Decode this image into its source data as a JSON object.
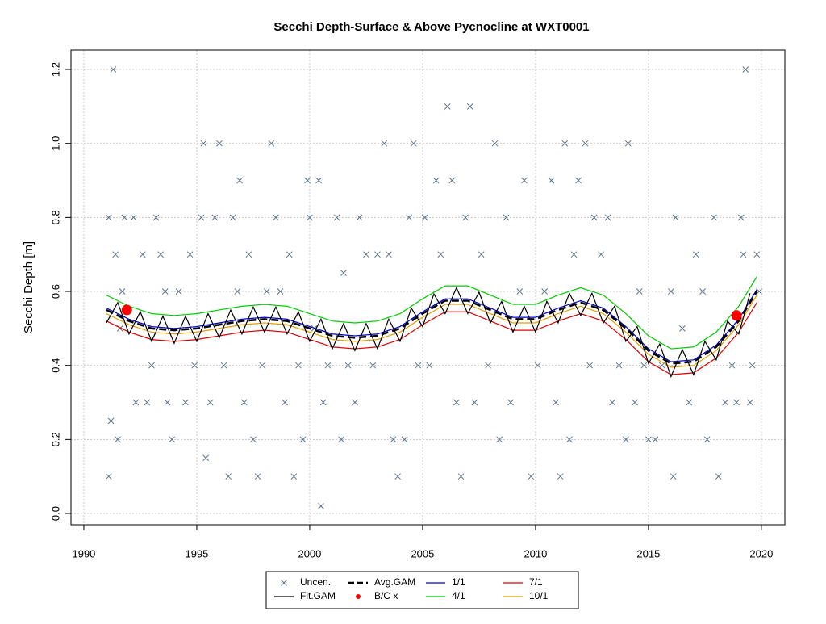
{
  "chart_data": {
    "type": "line",
    "title": "Secchi Depth-Surface & Above Pycnocline at WXT0001",
    "y_label": "Secchi Depth [m]",
    "xlim": [
      1989.43,
      2021.04
    ],
    "ylim": [
      -0.0305,
      1.2524
    ],
    "xticks": [
      1990,
      1995,
      2000,
      2005,
      2010,
      2015,
      2020
    ],
    "yticks": [
      {
        "value": 0,
        "label": "0.0"
      },
      0.2,
      0.4,
      0.6,
      0.8,
      {
        "value": 1,
        "label": "1.0"
      },
      1.2
    ],
    "grid": true,
    "series": [
      {
        "name": "Uncen.",
        "color": "#5f7489",
        "kind": "points",
        "marker": "x",
        "x": [
          1991.1,
          1991.1,
          1991.2,
          1991.3,
          1991.4,
          1991.5,
          1991.6,
          1991.7,
          1991.8,
          1992.2,
          1992.3,
          1992.6,
          1992.8,
          1993.0,
          1993.2,
          1993.4,
          1993.6,
          1993.7,
          1993.9,
          1994.2,
          1994.5,
          1994.7,
          1994.9,
          1995.2,
          1995.3,
          1995.4,
          1995.6,
          1995.8,
          1996.0,
          1996.2,
          1996.4,
          1996.6,
          1996.8,
          1996.9,
          1997.1,
          1997.3,
          1997.5,
          1997.7,
          1997.9,
          1998.1,
          1998.3,
          1998.5,
          1998.7,
          1998.9,
          1999.1,
          1999.3,
          1999.5,
          1999.7,
          1999.9,
          2000.0,
          2000.2,
          2000.4,
          2000.5,
          2000.6,
          2000.8,
          2001.2,
          2001.4,
          2001.5,
          2001.7,
          2002.0,
          2002.2,
          2002.5,
          2002.8,
          2003.0,
          2003.3,
          2003.5,
          2003.7,
          2003.9,
          2004.2,
          2004.4,
          2004.6,
          2004.8,
          2005.1,
          2005.3,
          2005.6,
          2005.8,
          2006.1,
          2006.3,
          2006.5,
          2006.7,
          2006.9,
          2007.1,
          2007.3,
          2007.6,
          2007.9,
          2008.2,
          2008.4,
          2008.7,
          2008.9,
          2009.3,
          2009.5,
          2009.8,
          2010.1,
          2010.4,
          2010.7,
          2010.9,
          2011.1,
          2011.3,
          2011.5,
          2011.7,
          2011.9,
          2012.2,
          2012.4,
          2012.6,
          2012.9,
          2013.2,
          2013.4,
          2013.7,
          2014.1,
          2014.0,
          2014.4,
          2014.6,
          2014.8,
          2015.0,
          2015.3,
          2015.6,
          2016.0,
          2016.1,
          2016.2,
          2016.5,
          2016.8,
          2017.1,
          2017.4,
          2017.6,
          2017.9,
          2018.1,
          2018.4,
          2018.7,
          2018.9,
          2019.1,
          2019.3,
          2019.2,
          2019.5,
          2019.6,
          2019.8,
          2019.9
        ],
        "values": [
          0.8,
          0.1,
          0.25,
          1.2,
          0.7,
          0.2,
          0.5,
          0.6,
          0.8,
          0.8,
          0.3,
          0.7,
          0.3,
          0.4,
          0.8,
          0.7,
          0.6,
          0.3,
          0.2,
          0.6,
          0.3,
          0.7,
          0.4,
          0.8,
          1.0,
          0.15,
          0.3,
          0.8,
          1.0,
          0.4,
          0.1,
          0.8,
          0.6,
          0.9,
          0.3,
          0.7,
          0.2,
          0.1,
          0.4,
          0.6,
          1.0,
          0.8,
          0.6,
          0.3,
          0.7,
          0.1,
          0.4,
          0.2,
          0.9,
          0.8,
          0.5,
          0.9,
          0.02,
          0.3,
          0.4,
          0.8,
          0.2,
          0.65,
          0.4,
          0.3,
          0.8,
          0.7,
          0.4,
          0.7,
          1.0,
          0.7,
          0.2,
          0.1,
          0.2,
          0.8,
          1.0,
          0.4,
          0.8,
          0.4,
          0.9,
          0.7,
          1.1,
          0.9,
          0.3,
          0.1,
          0.8,
          1.1,
          0.3,
          0.7,
          0.4,
          1.0,
          0.2,
          0.8,
          0.3,
          0.6,
          0.9,
          0.1,
          0.4,
          0.6,
          0.9,
          0.3,
          0.1,
          1.0,
          0.2,
          0.7,
          0.9,
          1.0,
          0.4,
          0.8,
          0.7,
          0.8,
          0.3,
          0.4,
          1.0,
          0.2,
          0.3,
          0.6,
          0.4,
          0.2,
          0.2,
          0.4,
          0.6,
          0.1,
          0.8,
          0.5,
          0.3,
          0.7,
          0.6,
          0.2,
          0.8,
          0.1,
          0.3,
          0.4,
          0.3,
          0.8,
          1.2,
          0.7,
          0.3,
          0.4,
          0.7,
          0.6
        ]
      },
      {
        "name": "Fit.GAM",
        "color": "#000000",
        "kind": "line",
        "x": [
          1991,
          1991.5,
          1992,
          1992.5,
          1993,
          1993.5,
          1994,
          1994.5,
          1995,
          1995.5,
          1996,
          1996.5,
          1997,
          1997.5,
          1998,
          1998.5,
          1999,
          1999.5,
          2000,
          2000.5,
          2001,
          2001.5,
          2002,
          2002.5,
          2003,
          2003.5,
          2004,
          2004.5,
          2005,
          2005.5,
          2006,
          2006.5,
          2007,
          2007.5,
          2008,
          2008.5,
          2009,
          2009.5,
          2010,
          2010.5,
          2011,
          2011.5,
          2012,
          2012.5,
          2013,
          2013.5,
          2014,
          2014.5,
          2015,
          2015.5,
          2016,
          2016.5,
          2017,
          2017.5,
          2018,
          2018.5,
          2019,
          2019.5
        ],
        "values": [
          0.515,
          0.57,
          0.485,
          0.545,
          0.465,
          0.533,
          0.46,
          0.533,
          0.465,
          0.54,
          0.475,
          0.55,
          0.485,
          0.558,
          0.49,
          0.558,
          0.485,
          0.545,
          0.465,
          0.525,
          0.445,
          0.513,
          0.44,
          0.513,
          0.445,
          0.525,
          0.465,
          0.555,
          0.505,
          0.593,
          0.54,
          0.61,
          0.54,
          0.598,
          0.515,
          0.573,
          0.49,
          0.56,
          0.49,
          0.573,
          0.515,
          0.595,
          0.535,
          0.595,
          0.515,
          0.56,
          0.465,
          0.505,
          0.405,
          0.458,
          0.37,
          0.443,
          0.375,
          0.465,
          0.415,
          0.52,
          0.485,
          0.595
        ]
      },
      {
        "name": "Avg.GAM",
        "color": "#000000",
        "kind": "line",
        "dash": true,
        "x": [
          1991,
          1992,
          1993,
          1994,
          1995,
          1996,
          1997,
          1998,
          1999,
          2000,
          2001,
          2002,
          2003,
          2004,
          2005,
          2006,
          2007,
          2008,
          2009,
          2010,
          2011,
          2012,
          2013,
          2014,
          2015,
          2016,
          2017,
          2018,
          2019,
          2019.8
        ],
        "values": [
          0.55,
          0.52,
          0.5,
          0.495,
          0.5,
          0.51,
          0.52,
          0.525,
          0.52,
          0.5,
          0.48,
          0.475,
          0.48,
          0.5,
          0.54,
          0.575,
          0.575,
          0.55,
          0.525,
          0.525,
          0.55,
          0.57,
          0.55,
          0.5,
          0.44,
          0.405,
          0.41,
          0.45,
          0.52,
          0.6
        ]
      },
      {
        "name": "B/C x",
        "color": "#ff0000",
        "kind": "points",
        "marker": "dot",
        "x": [
          1991.9,
          2018.9
        ],
        "values": [
          0.55,
          0.535
        ]
      },
      {
        "name": "1/1",
        "color": "#0000cd",
        "kind": "line",
        "x": [
          1991,
          1992,
          1993,
          1994,
          1995,
          1996,
          1997,
          1998,
          1999,
          2000,
          2001,
          2002,
          2003,
          2004,
          2005,
          2006,
          2007,
          2008,
          2009,
          2010,
          2011,
          2012,
          2013,
          2014,
          2015,
          2016,
          2017,
          2018,
          2019,
          2019.8
        ],
        "values": [
          0.555,
          0.525,
          0.505,
          0.5,
          0.505,
          0.515,
          0.525,
          0.53,
          0.525,
          0.505,
          0.485,
          0.48,
          0.485,
          0.505,
          0.545,
          0.58,
          0.58,
          0.555,
          0.53,
          0.53,
          0.555,
          0.575,
          0.555,
          0.505,
          0.445,
          0.41,
          0.415,
          0.455,
          0.525,
          0.605
        ]
      },
      {
        "name": "4/1",
        "color": "#00cc00",
        "kind": "line",
        "x": [
          1991,
          1992,
          1993,
          1994,
          1995,
          1996,
          1997,
          1998,
          1999,
          2000,
          2001,
          2002,
          2003,
          2004,
          2005,
          2006,
          2007,
          2008,
          2009,
          2010,
          2011,
          2012,
          2013,
          2014,
          2015,
          2016,
          2017,
          2018,
          2019,
          2019.8
        ],
        "values": [
          0.59,
          0.56,
          0.54,
          0.535,
          0.54,
          0.55,
          0.56,
          0.565,
          0.56,
          0.54,
          0.52,
          0.515,
          0.52,
          0.54,
          0.58,
          0.615,
          0.615,
          0.59,
          0.565,
          0.565,
          0.59,
          0.61,
          0.59,
          0.54,
          0.48,
          0.445,
          0.45,
          0.49,
          0.56,
          0.64
        ]
      },
      {
        "name": "7/1",
        "color": "#dd0000",
        "kind": "line",
        "x": [
          1991,
          1992,
          1993,
          1994,
          1995,
          1996,
          1997,
          1998,
          1999,
          2000,
          2001,
          2002,
          2003,
          2004,
          2005,
          2006,
          2007,
          2008,
          2009,
          2010,
          2011,
          2012,
          2013,
          2014,
          2015,
          2016,
          2017,
          2018,
          2019,
          2019.8
        ],
        "values": [
          0.52,
          0.49,
          0.47,
          0.465,
          0.47,
          0.48,
          0.49,
          0.495,
          0.49,
          0.47,
          0.45,
          0.445,
          0.45,
          0.47,
          0.51,
          0.545,
          0.545,
          0.52,
          0.495,
          0.495,
          0.52,
          0.54,
          0.52,
          0.47,
          0.41,
          0.375,
          0.38,
          0.42,
          0.49,
          0.57
        ]
      },
      {
        "name": "10/1",
        "color": "#e69f00",
        "kind": "line",
        "x": [
          1991,
          1992,
          1993,
          1994,
          1995,
          1996,
          1997,
          1998,
          1999,
          2000,
          2001,
          2002,
          2003,
          2004,
          2005,
          2006,
          2007,
          2008,
          2009,
          2010,
          2011,
          2012,
          2013,
          2014,
          2015,
          2016,
          2017,
          2018,
          2019,
          2019.8
        ],
        "values": [
          0.54,
          0.51,
          0.49,
          0.485,
          0.49,
          0.5,
          0.51,
          0.515,
          0.51,
          0.49,
          0.47,
          0.465,
          0.47,
          0.49,
          0.53,
          0.565,
          0.565,
          0.54,
          0.515,
          0.515,
          0.54,
          0.56,
          0.54,
          0.49,
          0.43,
          0.395,
          0.4,
          0.44,
          0.51,
          0.59
        ]
      }
    ]
  }
}
